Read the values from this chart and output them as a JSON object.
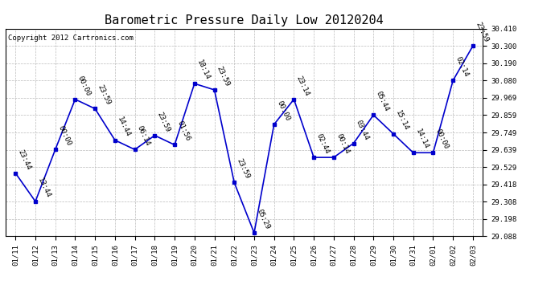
{
  "title": "Barometric Pressure Daily Low 20120204",
  "copyright": "Copyright 2012 Cartronics.com",
  "x_labels": [
    "01/11",
    "01/12",
    "01/13",
    "01/14",
    "01/15",
    "01/16",
    "01/17",
    "01/18",
    "01/19",
    "01/20",
    "01/21",
    "01/22",
    "01/23",
    "01/24",
    "01/25",
    "01/26",
    "01/27",
    "01/28",
    "01/29",
    "01/30",
    "01/31",
    "02/01",
    "02/02",
    "02/03"
  ],
  "y_values": [
    29.49,
    29.31,
    29.64,
    29.96,
    29.9,
    29.7,
    29.64,
    29.73,
    29.67,
    30.06,
    30.02,
    29.43,
    29.11,
    29.8,
    29.96,
    29.59,
    29.59,
    29.68,
    29.86,
    29.74,
    29.62,
    29.62,
    30.08,
    30.3
  ],
  "point_labels": [
    "23:44",
    "13:44",
    "00:00",
    "00:00",
    "23:59",
    "14:44",
    "06:14",
    "23:59",
    "01:56",
    "18:14",
    "23:59",
    "23:59",
    "05:29",
    "00:00",
    "23:14",
    "02:44",
    "00:14",
    "03:44",
    "05:44",
    "15:14",
    "14:14",
    "00:00",
    "02:14",
    "23:59"
  ],
  "y_min": 29.088,
  "y_max": 30.41,
  "y_ticks": [
    29.088,
    29.198,
    29.308,
    29.418,
    29.529,
    29.639,
    29.749,
    29.859,
    29.969,
    30.08,
    30.19,
    30.3,
    30.41
  ],
  "line_color": "#0000cc",
  "marker_color": "#0000cc",
  "grid_color": "#bbbbbb",
  "background_color": "#ffffff",
  "title_fontsize": 11,
  "label_fontsize": 6.5,
  "point_label_fontsize": 6.5,
  "copyright_fontsize": 6.5
}
